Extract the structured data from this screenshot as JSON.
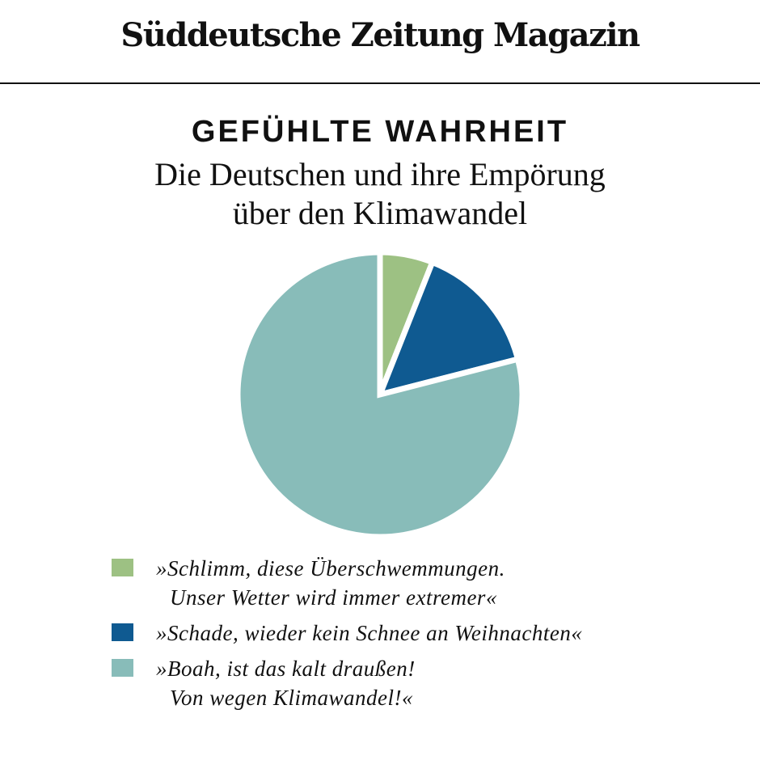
{
  "chart_data": {
    "type": "pie",
    "masthead": "Süddeutsche Zeitung Magazin",
    "title": "GEFÜHLTE WAHRHEIT",
    "subtitle": "Die Deutschen und ihre Empörung\nüber den Klimawandel",
    "series": [
      {
        "name": "»Schlimm, diese Überschwemmungen.\nUnser Wetter wird immer extremer«",
        "color": "#9dc183",
        "values": [
          6
        ]
      },
      {
        "name": "»Schade, wieder kein Schnee an Weihnachten«",
        "color": "#0f5a91",
        "values": [
          15
        ]
      },
      {
        "name": "»Boah, ist das kalt draußen!\nVon wegen Klimawandel!«",
        "color": "#88bcb9",
        "values": [
          79
        ]
      }
    ],
    "legend": "bottom"
  }
}
